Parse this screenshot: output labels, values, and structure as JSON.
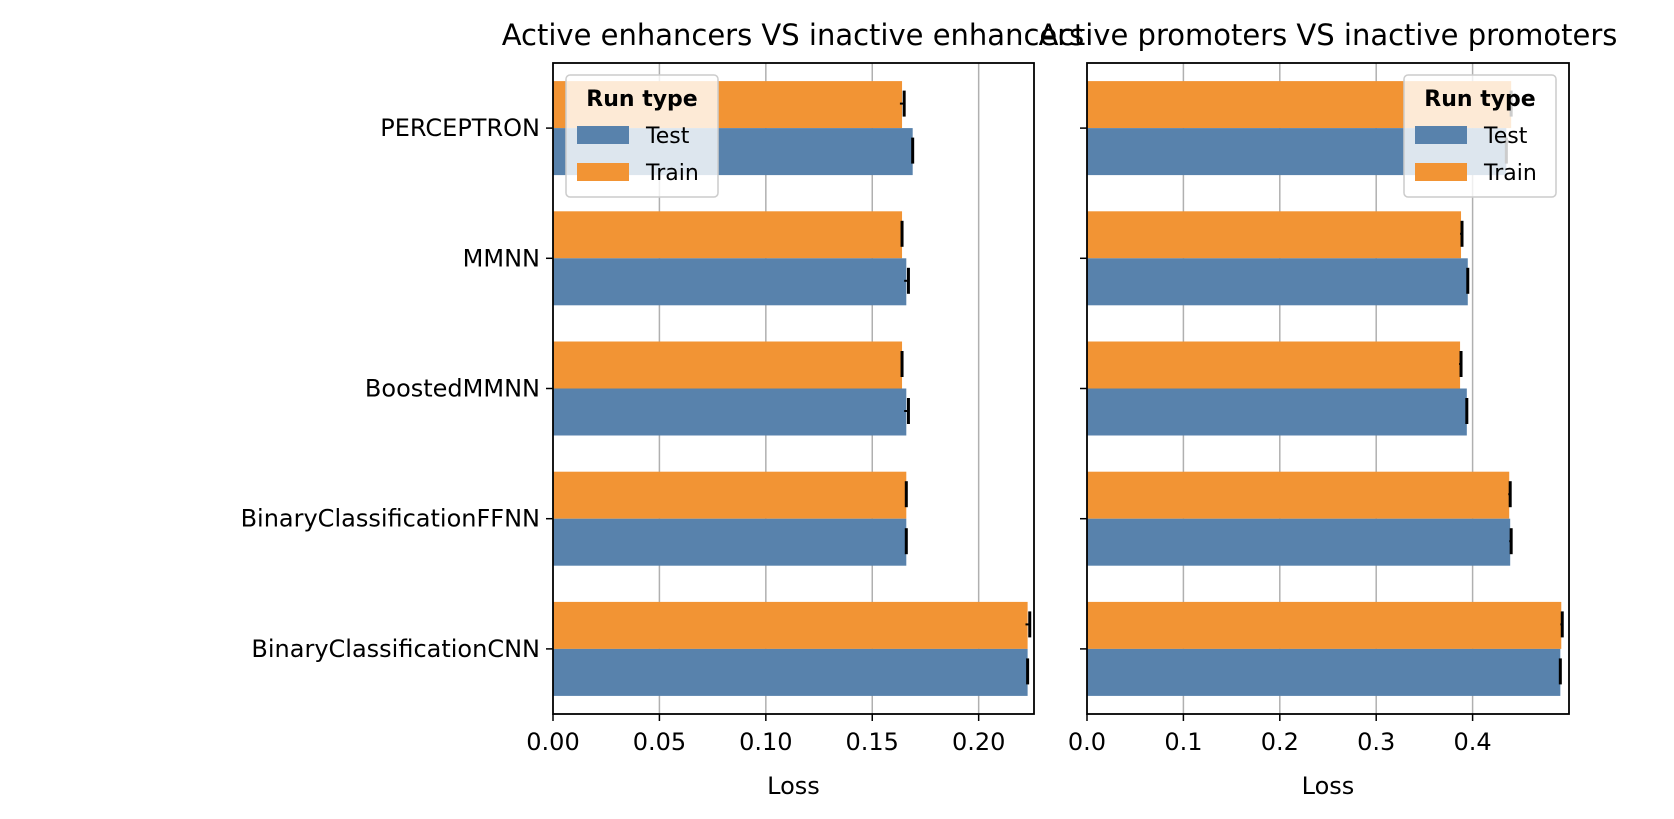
{
  "chart_data": [
    {
      "type": "bar",
      "orientation": "horizontal",
      "title": "Active enhancers VS inactive enhancers",
      "xlabel": "Loss",
      "ylabel": "",
      "categories": [
        "PERCEPTRON",
        "MMNN",
        "BoostedMMNN",
        "BinaryClassificationFFNN",
        "BinaryClassificationCNN"
      ],
      "series": [
        {
          "name": "Test",
          "values": [
            0.169,
            0.166,
            0.166,
            0.166,
            0.223
          ],
          "errors": [
            0.0,
            0.001,
            0.001,
            0.0,
            0.0
          ]
        },
        {
          "name": "Train",
          "values": [
            0.164,
            0.164,
            0.164,
            0.166,
            0.223
          ],
          "errors": [
            0.001,
            0.0,
            0.0,
            0.0,
            0.001
          ]
        }
      ],
      "xlim": [
        0,
        0.226
      ],
      "xticks": [
        0.0,
        0.05,
        0.1,
        0.15,
        0.2
      ],
      "xtick_labels": [
        "0.00",
        "0.05",
        "0.10",
        "0.15",
        "0.20"
      ],
      "grid": "x",
      "show_category_labels": true,
      "legend": {
        "title": "Run type",
        "placement": "top-left",
        "entries": [
          "Test",
          "Train"
        ]
      }
    },
    {
      "type": "bar",
      "orientation": "horizontal",
      "title": "Active promoters VS inactive promoters",
      "xlabel": "Loss",
      "ylabel": "",
      "categories": [
        "PERCEPTRON",
        "MMNN",
        "BoostedMMNN",
        "BinaryClassificationFFNN",
        "BinaryClassificationCNN"
      ],
      "series": [
        {
          "name": "Test",
          "values": [
            0.435,
            0.395,
            0.394,
            0.439,
            0.491
          ],
          "errors": [
            0.0,
            0.0,
            0.0,
            0.001,
            0.0
          ]
        },
        {
          "name": "Train",
          "values": [
            0.44,
            0.388,
            0.387,
            0.438,
            0.492
          ],
          "errors": [
            0.0,
            0.001,
            0.001,
            0.001,
            0.001
          ]
        }
      ],
      "xlim": [
        0,
        0.5
      ],
      "xticks": [
        0.0,
        0.1,
        0.2,
        0.3,
        0.4
      ],
      "xtick_labels": [
        "0.0",
        "0.1",
        "0.2",
        "0.3",
        "0.4"
      ],
      "grid": "x",
      "show_category_labels": false,
      "legend": {
        "title": "Run type",
        "placement": "top-right",
        "entries": [
          "Test",
          "Train"
        ]
      }
    }
  ],
  "colors": {
    "Test": "#5882ac",
    "Train": "#f29434",
    "grid": "#b0b0b0",
    "errorbar": "#000000"
  }
}
